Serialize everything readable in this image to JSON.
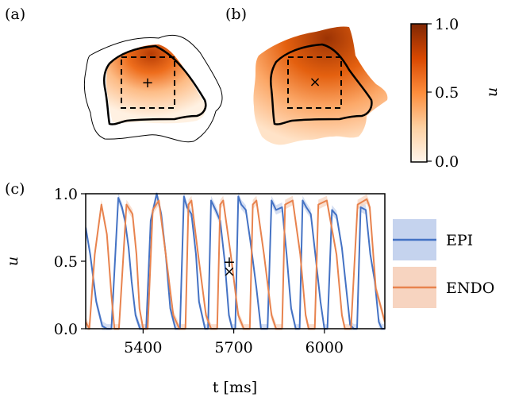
{
  "panel_labels": {
    "a": "(a)",
    "b": "(b)",
    "c": "(c)"
  },
  "colorbar": {
    "label": "u",
    "ticks": [
      "0.0",
      "0.5",
      "1.0"
    ],
    "tick_values": [
      0.0,
      0.5,
      1.0
    ],
    "colors": [
      "#fff5eb",
      "#fdd0a2",
      "#fd8d3c",
      "#d94801",
      "#7f2704"
    ]
  },
  "markers": {
    "a": "+",
    "b": "×"
  },
  "chart_data": {
    "type": "line",
    "xlabel": "t [ms]",
    "ylabel": "u",
    "xlim": [
      5210,
      6200
    ],
    "ylim": [
      0.0,
      1.0
    ],
    "xticks": [
      5400,
      5700,
      6000
    ],
    "yticks": [
      "0.0",
      "0.5",
      "1.0"
    ],
    "ytick_values": [
      0.0,
      0.5,
      1.0
    ],
    "legend": "right",
    "series": [
      {
        "name": "EPI",
        "color": "#4472c4",
        "band": "#c5d3ee",
        "x": [
          5210,
          5225,
          5245,
          5265,
          5280,
          5295,
          5318,
          5330,
          5340,
          5352,
          5362,
          5375,
          5390,
          5400,
          5410,
          5425,
          5445,
          5460,
          5475,
          5490,
          5507,
          5522,
          5535,
          5545,
          5560,
          5575,
          5585,
          5605,
          5615,
          5625,
          5640,
          5655,
          5670,
          5684,
          5695,
          5705,
          5715,
          5725,
          5740,
          5755,
          5775,
          5790,
          5801,
          5812,
          5825,
          5840,
          5860,
          5875,
          5890,
          5905,
          5918,
          5928,
          5940,
          5955,
          5970,
          5987,
          6000,
          6010,
          6025,
          6040,
          6058,
          6072,
          6085,
          6097,
          6108,
          6120,
          6137,
          6152,
          6167,
          6180,
          6190,
          6200
        ],
        "y": [
          0.75,
          0.55,
          0.2,
          0.02,
          0.0,
          0.0,
          0.97,
          0.9,
          0.8,
          0.6,
          0.35,
          0.1,
          0.0,
          0.0,
          0.0,
          0.8,
          1.0,
          0.85,
          0.55,
          0.15,
          0.0,
          0.0,
          0.98,
          0.9,
          0.85,
          0.55,
          0.2,
          0.0,
          0.0,
          0.95,
          0.88,
          0.8,
          0.5,
          0.1,
          0.0,
          0.0,
          0.98,
          0.92,
          0.88,
          0.65,
          0.3,
          0.0,
          0.0,
          0.0,
          0.95,
          0.88,
          0.9,
          0.55,
          0.15,
          0.0,
          0.0,
          0.95,
          0.9,
          0.85,
          0.55,
          0.2,
          0.0,
          0.0,
          0.88,
          0.84,
          0.6,
          0.3,
          0.03,
          0.0,
          0.0,
          0.9,
          0.88,
          0.55,
          0.35,
          0.05,
          0.0,
          0.0
        ]
      },
      {
        "name": "ENDO",
        "color": "#e8834e",
        "band": "#f7d4c0",
        "x": [
          5210,
          5222,
          5240,
          5262,
          5280,
          5295,
          5305,
          5320,
          5345,
          5365,
          5378,
          5388,
          5400,
          5415,
          5432,
          5452,
          5475,
          5500,
          5520,
          5530,
          5540,
          5550,
          5560,
          5582,
          5608,
          5625,
          5635,
          5645,
          5655,
          5665,
          5690,
          5715,
          5733,
          5743,
          5753,
          5763,
          5775,
          5800,
          5825,
          5840,
          5850,
          5860,
          5870,
          5895,
          5920,
          5938,
          5948,
          5958,
          5968,
          5980,
          6008,
          6040,
          6058,
          6068,
          6078,
          6088,
          6110,
          6140,
          6150,
          6160,
          6170,
          6200
        ],
        "y": [
          0.05,
          0.0,
          0.55,
          0.92,
          0.7,
          0.25,
          0.0,
          0.0,
          0.92,
          0.85,
          0.55,
          0.15,
          0.0,
          0.0,
          0.88,
          0.95,
          0.55,
          0.1,
          0.0,
          0.0,
          0.0,
          0.92,
          0.95,
          0.55,
          0.1,
          0.0,
          0.0,
          0.0,
          0.92,
          0.95,
          0.55,
          0.1,
          0.0,
          0.0,
          0.0,
          0.92,
          0.95,
          0.55,
          0.1,
          0.0,
          0.0,
          0.0,
          0.92,
          0.95,
          0.55,
          0.1,
          0.0,
          0.0,
          0.0,
          0.92,
          0.95,
          0.55,
          0.1,
          0.0,
          0.0,
          0.0,
          0.92,
          0.96,
          0.9,
          0.6,
          0.3,
          0.05
        ]
      }
    ]
  }
}
